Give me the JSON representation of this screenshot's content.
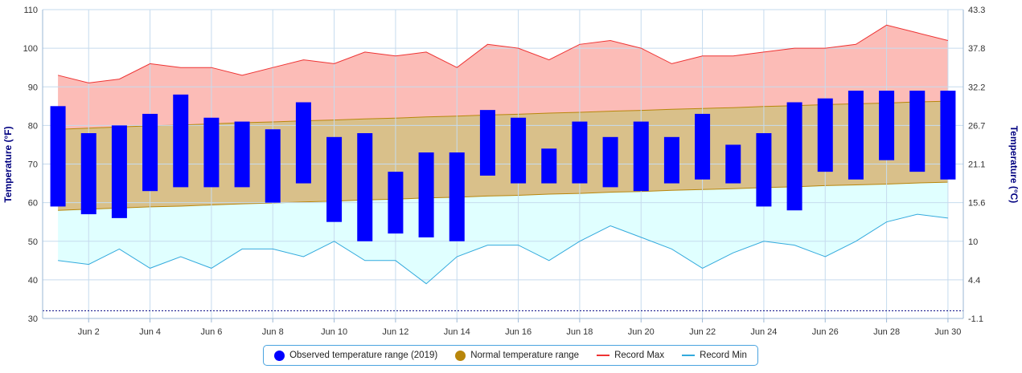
{
  "chart_data": {
    "type": "bar",
    "x": [
      "Jun 1",
      "Jun 2",
      "Jun 3",
      "Jun 4",
      "Jun 5",
      "Jun 6",
      "Jun 7",
      "Jun 8",
      "Jun 9",
      "Jun 10",
      "Jun 11",
      "Jun 12",
      "Jun 13",
      "Jun 14",
      "Jun 15",
      "Jun 16",
      "Jun 17",
      "Jun 18",
      "Jun 19",
      "Jun 20",
      "Jun 21",
      "Jun 22",
      "Jun 23",
      "Jun 24",
      "Jun 25",
      "Jun 26",
      "Jun 27",
      "Jun 28",
      "Jun 29",
      "Jun 30"
    ],
    "x_tick_labels": [
      "Jun 2",
      "Jun 4",
      "Jun 6",
      "Jun 8",
      "Jun 10",
      "Jun 12",
      "Jun 14",
      "Jun 16",
      "Jun 18",
      "Jun 20",
      "Jun 22",
      "Jun 24",
      "Jun 26",
      "Jun 28",
      "Jun 30"
    ],
    "ylabel": "Temperature (°F)",
    "ylabel_right": "Temperature (°C)",
    "ylim": [
      30,
      110
    ],
    "y_ticks": [
      30,
      40,
      50,
      60,
      70,
      80,
      90,
      100,
      110
    ],
    "y_ticks_right": [
      "-1.1",
      "4.4",
      "10",
      "15.6",
      "21.1",
      "26.7",
      "32.2",
      "37.8",
      "43.3"
    ],
    "reference_line": 32,
    "grid": true,
    "legend_position": "bottom",
    "series": [
      {
        "name": "Observed temperature range (2019)",
        "kind": "range-bar",
        "color": "#0000ff",
        "low": [
          59,
          57,
          56,
          63,
          64,
          64,
          64,
          60,
          65,
          55,
          50,
          52,
          51,
          50,
          67,
          65,
          65,
          65,
          64,
          63,
          65,
          66,
          65,
          59,
          58,
          68,
          66,
          71,
          68,
          66
        ],
        "high": [
          85,
          78,
          80,
          83,
          88,
          82,
          81,
          79,
          86,
          77,
          78,
          68,
          73,
          73,
          84,
          82,
          74,
          81,
          77,
          81,
          77,
          83,
          75,
          78,
          86,
          87,
          89,
          89,
          89,
          89
        ]
      },
      {
        "name": "Normal temperature range",
        "kind": "range-area",
        "color": "#b8860b",
        "low": [
          58.0,
          58.3,
          58.6,
          58.9,
          59.1,
          59.4,
          59.7,
          59.9,
          60.2,
          60.4,
          60.7,
          60.9,
          61.2,
          61.4,
          61.7,
          61.9,
          62.2,
          62.4,
          62.7,
          62.9,
          63.2,
          63.4,
          63.6,
          63.9,
          64.1,
          64.4,
          64.6,
          64.8,
          65.1,
          65.3
        ],
        "high": [
          79.0,
          79.3,
          79.6,
          79.9,
          80.1,
          80.4,
          80.7,
          80.9,
          81.2,
          81.4,
          81.7,
          81.9,
          82.2,
          82.4,
          82.7,
          82.9,
          83.2,
          83.4,
          83.7,
          83.9,
          84.2,
          84.4,
          84.6,
          84.9,
          85.1,
          85.4,
          85.6,
          85.8,
          86.1,
          86.3
        ]
      },
      {
        "name": "Record Max",
        "kind": "line",
        "color": "#ee3333",
        "values": [
          93,
          91,
          92,
          96,
          95,
          95,
          93,
          95,
          97,
          96,
          99,
          98,
          99,
          95,
          101,
          100,
          97,
          101,
          102,
          100,
          96,
          98,
          98,
          99,
          100,
          100,
          101,
          106,
          104,
          102
        ]
      },
      {
        "name": "Record Min",
        "kind": "line",
        "color": "#33aadd",
        "values": [
          45,
          44,
          48,
          43,
          46,
          43,
          48,
          48,
          46,
          50,
          45,
          45,
          39,
          46,
          49,
          49,
          45,
          50,
          54,
          51,
          48,
          43,
          47,
          50,
          49,
          46,
          50,
          55,
          57,
          56
        ]
      }
    ]
  },
  "colors": {
    "record_max_fill": "#fcbcb7",
    "normal_fill": "#d9c08a",
    "record_min_fill": "#e0ffff",
    "axis_title": "#000080",
    "grid": "#c6dbee",
    "reference_line": "#000080"
  }
}
